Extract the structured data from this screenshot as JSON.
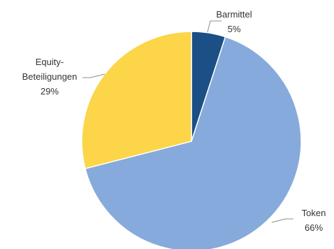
{
  "chart_data": {
    "type": "pie",
    "slices": [
      {
        "label": "Barmittel",
        "value": 5,
        "value_label": "5%",
        "color": "#1c4f85"
      },
      {
        "label": "Token",
        "value": 66,
        "value_label": "66%",
        "color": "#86aadb"
      },
      {
        "label": "Equity-Beteiligungen",
        "label_lines": [
          "Equity-",
          "Beteiligungen"
        ],
        "value": 29,
        "value_label": "29%",
        "color": "#fcd549"
      }
    ],
    "start_angle": "12 o'clock",
    "direction": "clockwise",
    "slice_border_color": "#ffffff",
    "leader_line_color": "#8c8c8c"
  }
}
